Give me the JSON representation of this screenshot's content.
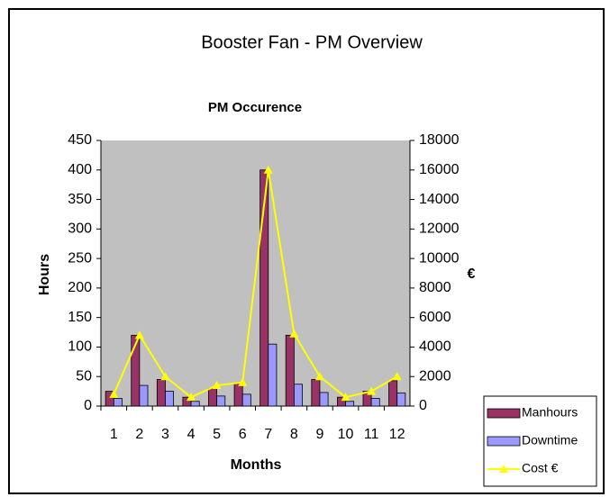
{
  "chart_data": {
    "type": "bar_line",
    "title": "Booster Fan - PM Overview",
    "subtitle": "PM Occurence",
    "x_label": "Months",
    "y_label": "Hours",
    "y2_label": "€",
    "categories": [
      "1",
      "2",
      "3",
      "4",
      "5",
      "6",
      "7",
      "8",
      "9",
      "10",
      "11",
      "12"
    ],
    "series": [
      {
        "name": "Manhours",
        "color": "#993366",
        "kind": "bar",
        "values": [
          25,
          120,
          45,
          15,
          30,
          38,
          400,
          120,
          45,
          15,
          25,
          43
        ]
      },
      {
        "name": "Downtime",
        "color": "#9999ff",
        "kind": "bar",
        "values": [
          13,
          35,
          25,
          8,
          17,
          20,
          105,
          37,
          23,
          8,
          13,
          22
        ]
      },
      {
        "name": "Cost €",
        "color": "#ffff00",
        "kind": "line",
        "axis": "y2",
        "values": [
          800,
          4800,
          2000,
          600,
          1400,
          1600,
          16000,
          4900,
          2000,
          600,
          1000,
          2000
        ]
      }
    ],
    "ylim": [
      0,
      450
    ],
    "yticks": [
      0,
      50,
      100,
      150,
      200,
      250,
      300,
      350,
      400,
      450
    ],
    "y2lim": [
      0,
      18000
    ],
    "y2ticks": [
      0,
      2000,
      4000,
      6000,
      8000,
      10000,
      12000,
      14000,
      16000,
      18000
    ],
    "plot_background": "#c0c0c0",
    "legend": "bottom-right"
  }
}
